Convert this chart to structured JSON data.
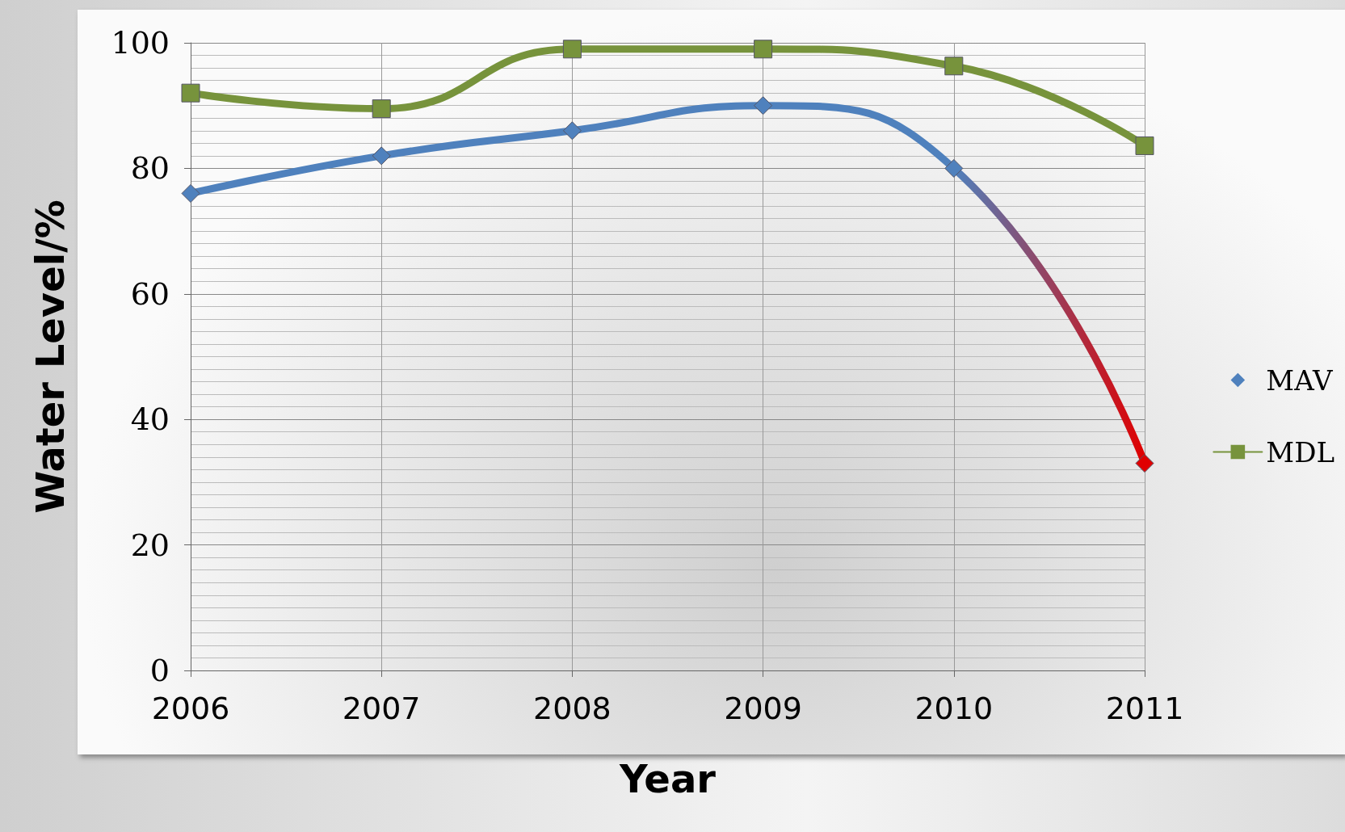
{
  "chart_data": {
    "type": "line",
    "xlabel": "Year",
    "ylabel": "Water Level/%",
    "categories": [
      "2006",
      "2007",
      "2008",
      "2009",
      "2010",
      "2011"
    ],
    "series": [
      {
        "name": "MAV",
        "color": "#4f81bd",
        "marker": "diamond",
        "colors": [
          "#4f81bd",
          "#4f81bd",
          "#4f81bd",
          "#4f81bd",
          "#4f81bd",
          "#e00000"
        ],
        "values": [
          76,
          82,
          86,
          90,
          80,
          33
        ]
      },
      {
        "name": "MDL",
        "color": "#77933c",
        "marker": "square",
        "values": [
          92,
          89.5,
          99,
          99,
          96.3,
          83.6
        ]
      }
    ],
    "ylim": [
      0,
      100
    ],
    "yticks": [
      0,
      20,
      40,
      60,
      80,
      100
    ],
    "grid": true,
    "legend": "right"
  }
}
